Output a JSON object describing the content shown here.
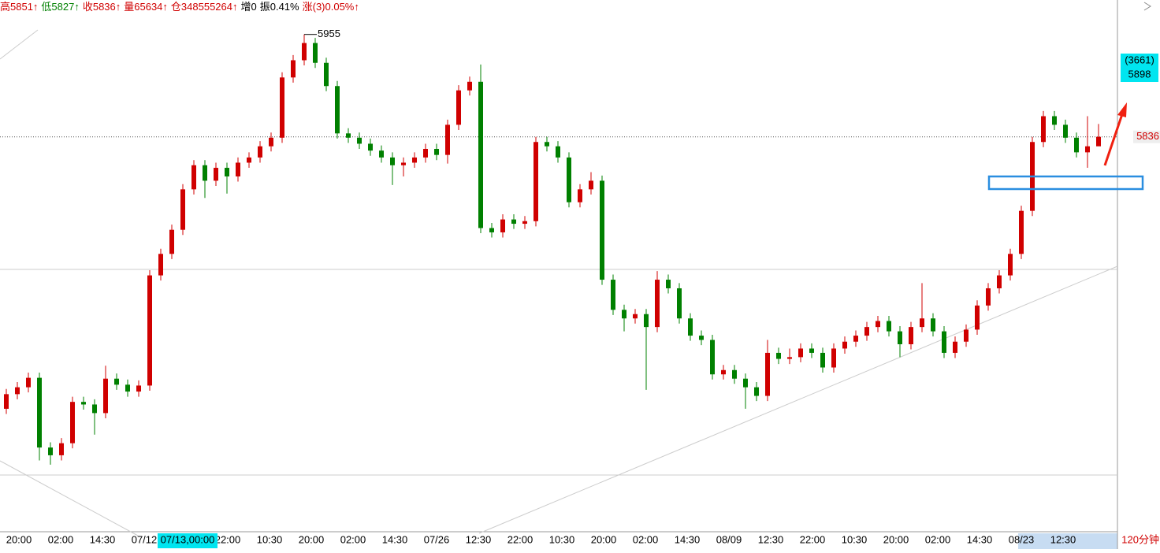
{
  "chart_data": {
    "type": "candlestick",
    "header": [
      {
        "text": "高5851↑",
        "color": "#d00000"
      },
      {
        "text": "低5827↑",
        "color": "#008000"
      },
      {
        "text": "收5836↑",
        "color": "#d00000"
      },
      {
        "text": "量65634↑",
        "color": "#d00000"
      },
      {
        "text": "仓348555264↑",
        "color": "#d00000"
      },
      {
        "text": "增0",
        "color": "#000000"
      },
      {
        "text": "振0.41%",
        "color": "#000000"
      },
      {
        "text": "涨(3)0.05%↑",
        "color": "#d00000"
      }
    ],
    "categories": [
      "20:00",
      "02:00",
      "14:30",
      "07/12",
      null,
      "22:00",
      "10:30",
      "20:00",
      "02:00",
      "14:30",
      "07/26",
      "12:30",
      "22:00",
      "10:30",
      "20:00",
      "02:00",
      "14:30",
      "08/09",
      "12:30",
      "22:00",
      "10:30",
      "20:00",
      "02:00",
      "14:30",
      "08/23",
      "12:30"
    ],
    "cursor_label": "07/13,00:00",
    "period_label": "120分钟",
    "high_annotation": {
      "text": "5955",
      "value": 5955
    },
    "last_label": {
      "text": "5836",
      "value": 5836
    },
    "info_box": [
      "(3661)",
      "5898"
    ],
    "ylim": [
      5357,
      5995
    ],
    "up_color": "#d00000",
    "down_color": "#008000",
    "open": [
      5520,
      5537,
      5545,
      5556,
      5475,
      5466,
      5480,
      5528,
      5525,
      5515,
      5555,
      5548,
      5540,
      5547,
      5675,
      5700,
      5728,
      5775,
      5803,
      5785,
      5800,
      5790,
      5806,
      5812,
      5825,
      5835,
      5905,
      5925,
      5945,
      5922,
      5895,
      5840,
      5835,
      5828,
      5820,
      5812,
      5803,
      5806,
      5812,
      5822,
      5815,
      5850,
      5890,
      5900,
      5730,
      5725,
      5740,
      5735,
      5738,
      5830,
      5825,
      5812,
      5760,
      5775,
      5785,
      5670,
      5635,
      5625,
      5630,
      5615,
      5670,
      5660,
      5625,
      5605,
      5600,
      5560,
      5565,
      5555,
      5545,
      5535,
      5585,
      5578,
      5580,
      5590,
      5585,
      5568,
      5590,
      5598,
      5605,
      5615,
      5622,
      5610,
      5595,
      5615,
      5625,
      5610,
      5585,
      5598,
      5612,
      5640,
      5660,
      5675,
      5700,
      5750,
      5830,
      5860,
      5850,
      5835,
      5818,
      5825
    ],
    "close": [
      5537,
      5545,
      5556,
      5475,
      5466,
      5480,
      5528,
      5525,
      5515,
      5555,
      5548,
      5540,
      5547,
      5675,
      5700,
      5728,
      5775,
      5803,
      5785,
      5800,
      5790,
      5806,
      5812,
      5825,
      5835,
      5905,
      5925,
      5945,
      5922,
      5895,
      5840,
      5835,
      5828,
      5820,
      5812,
      5803,
      5806,
      5812,
      5822,
      5815,
      5850,
      5890,
      5900,
      5730,
      5725,
      5740,
      5735,
      5738,
      5830,
      5825,
      5812,
      5760,
      5775,
      5785,
      5670,
      5635,
      5625,
      5630,
      5615,
      5670,
      5660,
      5625,
      5605,
      5600,
      5560,
      5565,
      5555,
      5545,
      5535,
      5585,
      5578,
      5580,
      5590,
      5585,
      5568,
      5590,
      5598,
      5605,
      5615,
      5622,
      5610,
      5595,
      5615,
      5625,
      5610,
      5585,
      5598,
      5612,
      5640,
      5660,
      5675,
      5700,
      5750,
      5830,
      5860,
      5850,
      5835,
      5818,
      5825,
      5836
    ],
    "high": [
      5543,
      5551,
      5562,
      5562,
      5481,
      5486,
      5534,
      5534,
      5531,
      5570,
      5561,
      5554,
      5553,
      5681,
      5706,
      5734,
      5781,
      5809,
      5809,
      5806,
      5806,
      5812,
      5818,
      5831,
      5841,
      5911,
      5931,
      5955,
      5951,
      5928,
      5901,
      5846,
      5841,
      5834,
      5826,
      5818,
      5812,
      5818,
      5828,
      5828,
      5856,
      5896,
      5906,
      5920,
      5736,
      5746,
      5746,
      5744,
      5836,
      5836,
      5831,
      5818,
      5781,
      5795,
      5791,
      5676,
      5641,
      5636,
      5636,
      5680,
      5676,
      5666,
      5631,
      5611,
      5606,
      5571,
      5571,
      5561,
      5551,
      5600,
      5591,
      5590,
      5596,
      5596,
      5591,
      5596,
      5604,
      5611,
      5621,
      5628,
      5628,
      5616,
      5621,
      5666,
      5631,
      5616,
      5604,
      5618,
      5646,
      5666,
      5681,
      5706,
      5756,
      5836,
      5866,
      5866,
      5856,
      5841,
      5860,
      5851
    ],
    "low": [
      5514,
      5531,
      5539,
      5460,
      5455,
      5460,
      5474,
      5519,
      5490,
      5509,
      5542,
      5534,
      5534,
      5541,
      5669,
      5694,
      5722,
      5769,
      5765,
      5779,
      5770,
      5784,
      5800,
      5806,
      5819,
      5829,
      5899,
      5919,
      5916,
      5889,
      5834,
      5829,
      5822,
      5814,
      5806,
      5780,
      5790,
      5800,
      5806,
      5809,
      5805,
      5844,
      5884,
      5724,
      5719,
      5719,
      5729,
      5729,
      5732,
      5819,
      5806,
      5754,
      5754,
      5769,
      5664,
      5629,
      5610,
      5619,
      5542,
      5609,
      5654,
      5619,
      5599,
      5594,
      5554,
      5554,
      5549,
      5520,
      5529,
      5529,
      5572,
      5572,
      5574,
      5579,
      5562,
      5562,
      5584,
      5592,
      5599,
      5609,
      5604,
      5580,
      5589,
      5609,
      5604,
      5579,
      5579,
      5592,
      5606,
      5634,
      5654,
      5669,
      5694,
      5744,
      5824,
      5844,
      5829,
      5812,
      5800,
      5827
    ]
  }
}
